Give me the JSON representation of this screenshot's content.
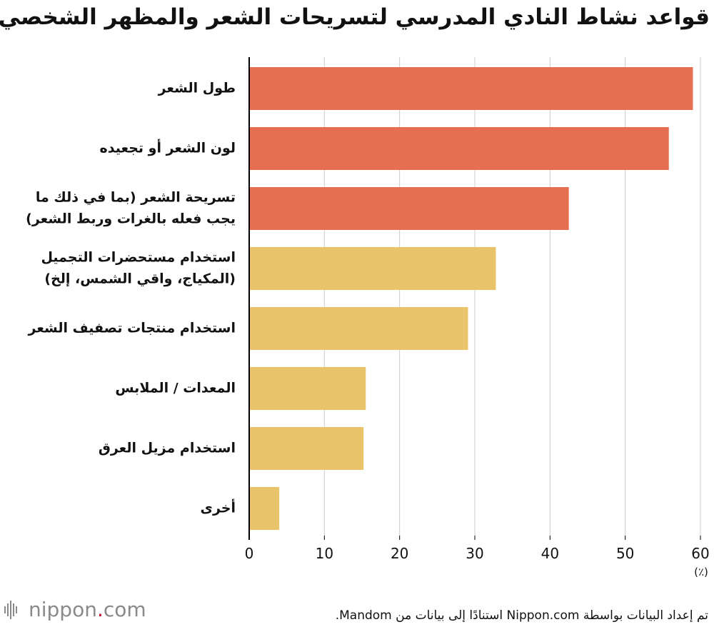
{
  "title": "قواعد نشاط النادي المدرسي لتسريحات الشعر والمظهر الشخصي",
  "unit_label": "(٪)",
  "source": "تم إعداد البيانات بواسطة Nippon.com استنادًا إلى بيانات من Mandom.",
  "logo": {
    "name": "nippon",
    "dot": ".",
    "suffix": "com"
  },
  "colors": {
    "top": "#e76f51",
    "rest": "#e9c46a",
    "grid": "#cccccc",
    "axis": "#000000"
  },
  "chart_data": {
    "type": "bar",
    "orientation": "horizontal",
    "categories": [
      [
        "طول الشعر"
      ],
      [
        "لون الشعر أو تجعيده"
      ],
      [
        "تسريحة الشعر (بما في ذلك ما",
        "يجب فعله بالغرات وربط الشعر)"
      ],
      [
        "استخدام مستحضرات التجميل",
        "(المكياج، واقي الشمس، إلخ)"
      ],
      [
        "استخدام منتجات تصفيف الشعر"
      ],
      [
        "المعدات / الملابس"
      ],
      [
        "استخدام مزيل العرق"
      ],
      [
        "أخرى"
      ]
    ],
    "values": [
      59.0,
      55.8,
      42.5,
      32.8,
      29.1,
      15.5,
      15.2,
      4.0
    ],
    "highlight_count": 3,
    "xlim": [
      0,
      60
    ],
    "xticks": [
      0,
      10,
      20,
      30,
      40,
      50,
      60
    ],
    "grid": true
  }
}
